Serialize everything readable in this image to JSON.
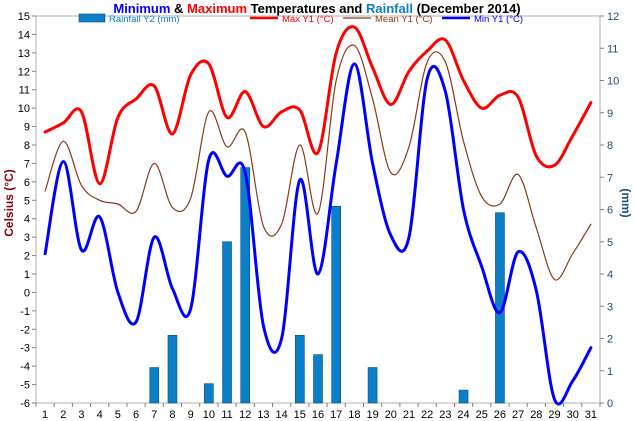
{
  "title": {
    "part1": "Minimum",
    "part2": " & ",
    "part3": "Maximum",
    "part4": " Temperatures and ",
    "part5": "Rainfall",
    "part6": " (December 2014)"
  },
  "legend": [
    {
      "label": "Rainfall Y2 (mm)",
      "type": "bar",
      "color": "#0c7fc8"
    },
    {
      "label": "Max Y1 (°C)",
      "type": "line",
      "color": "#ff0000"
    },
    {
      "label": "Mean Y1 (°C)",
      "type": "line",
      "color": "#8b3a1a"
    },
    {
      "label": "Min Y1 (°C)",
      "type": "line",
      "color": "#0000ff"
    }
  ],
  "chart_data": {
    "type": "line",
    "title": "Minimum & Maximum Temperatures and Rainfall (December 2014)",
    "x": [
      1,
      2,
      3,
      4,
      5,
      6,
      7,
      8,
      9,
      10,
      11,
      12,
      13,
      14,
      15,
      16,
      17,
      18,
      19,
      20,
      21,
      22,
      23,
      24,
      25,
      26,
      27,
      28,
      29,
      30,
      31
    ],
    "xlabel": "",
    "ylabel": "Celsius (°C)",
    "ylim": [
      -6,
      15
    ],
    "y2label": "(mm)",
    "y2lim": [
      0,
      12
    ],
    "yticks": [
      -6,
      -5,
      -4,
      -3,
      -2,
      -1,
      0,
      1,
      2,
      3,
      4,
      5,
      6,
      7,
      8,
      9,
      10,
      11,
      12,
      13,
      14,
      15
    ],
    "y2ticks": [
      0,
      1,
      2,
      3,
      4,
      5,
      6,
      7,
      8,
      9,
      10,
      11,
      12
    ],
    "series": [
      {
        "name": "Max Y1 (°C)",
        "axis": "y1",
        "color": "#ff0000",
        "values": [
          8.7,
          9.2,
          9.8,
          5.9,
          9.5,
          10.5,
          11.2,
          8.6,
          11.8,
          12.4,
          9.5,
          10.9,
          9.0,
          9.8,
          9.9,
          7.6,
          13.0,
          14.4,
          12.2,
          10.2,
          12.0,
          13.1,
          13.7,
          11.5,
          10.0,
          10.7,
          10.6,
          7.4,
          6.9,
          8.5,
          10.3
        ]
      },
      {
        "name": "Mean Y1 (°C)",
        "axis": "y1",
        "color": "#8b3a1a",
        "values": [
          5.5,
          8.2,
          5.8,
          5.0,
          4.8,
          4.4,
          7.0,
          4.6,
          5.1,
          9.8,
          7.9,
          8.7,
          3.6,
          3.7,
          8.0,
          4.3,
          11.5,
          13.4,
          10.5,
          6.5,
          7.9,
          12.5,
          12.5,
          8.2,
          5.2,
          4.8,
          6.4,
          3.5,
          0.7,
          2.1,
          3.7
        ]
      },
      {
        "name": "Min Y1 (°C)",
        "axis": "y1",
        "color": "#0000ff",
        "values": [
          2.1,
          7.1,
          2.3,
          4.1,
          0.0,
          -1.6,
          3.0,
          0.2,
          -0.9,
          7.2,
          6.3,
          6.5,
          -1.8,
          -2.5,
          6.1,
          1.0,
          7.0,
          12.4,
          7.0,
          3.1,
          3.0,
          11.6,
          10.9,
          4.5,
          1.4,
          -1.1,
          2.2,
          0.1,
          -5.8,
          -4.8,
          -3.0
        ]
      },
      {
        "name": "Rainfall Y2 (mm)",
        "axis": "y2",
        "type": "bar",
        "color": "#0c7fc8",
        "values": [
          0,
          0,
          0,
          0,
          0,
          0,
          1.1,
          2.1,
          0,
          0.6,
          5.0,
          7.3,
          0,
          0,
          2.1,
          1.5,
          6.1,
          0,
          1.1,
          0,
          0,
          0,
          0,
          0.4,
          0,
          5.9,
          0,
          0,
          0,
          0,
          0
        ]
      }
    ],
    "grid": false,
    "legend_position": "top"
  }
}
